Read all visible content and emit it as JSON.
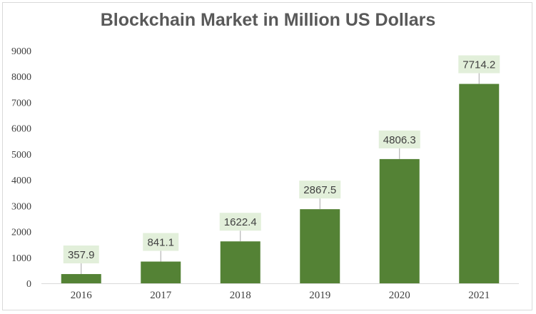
{
  "chart_data": {
    "type": "bar",
    "title": "Blockchain Market in Million US Dollars",
    "categories": [
      "2016",
      "2017",
      "2018",
      "2019",
      "2020",
      "2021"
    ],
    "values": [
      357.9,
      841.1,
      1622.4,
      2867.5,
      4806.3,
      7714.2
    ],
    "data_labels": [
      "357.9",
      "841.1",
      "1622.4",
      "2867.5",
      "4806.3",
      "7714.2"
    ],
    "ylim": [
      0,
      9000
    ],
    "yticks": [
      "0",
      "1000",
      "2000",
      "3000",
      "4000",
      "5000",
      "6000",
      "7000",
      "8000",
      "9000"
    ],
    "grid": false,
    "legend": "none",
    "colors": {
      "bar": "#548235",
      "label_bg": "#e2efda",
      "text": "#404040"
    }
  }
}
